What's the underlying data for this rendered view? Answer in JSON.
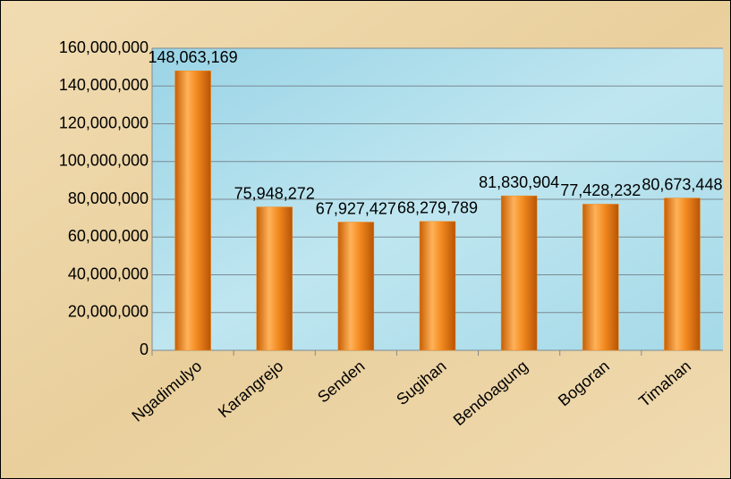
{
  "chart_data": {
    "type": "bar",
    "categories": [
      "Ngadimulyo",
      "Karangrejo",
      "Senden",
      "Sugihan",
      "Bendoagung",
      "Bogoran",
      "Timahan"
    ],
    "values": [
      148063169,
      75948272,
      67927427,
      68279789,
      81830904,
      77428232,
      80673448
    ],
    "value_labels": [
      "148,063,169",
      "75,948,272",
      "67,927,427",
      "68,279,789",
      "81,830,904",
      "77,428,232",
      "80,673,448"
    ],
    "color": "#f08a1c",
    "ylim": [
      0,
      160000000
    ],
    "yticks": [
      0,
      {
        "value": 20000000,
        "label": "20,000,000"
      },
      {
        "value": 40000000,
        "label": "40,000,000"
      },
      {
        "value": 60000000,
        "label": "60,000,000"
      },
      {
        "value": 80000000,
        "label": "80,000,000"
      },
      {
        "value": 100000000,
        "label": "100,000,000"
      },
      {
        "value": 120000000,
        "label": "120,000,000"
      },
      {
        "value": 140000000,
        "label": "140,000,000"
      },
      {
        "value": 160000000,
        "label": "160,000,000"
      }
    ],
    "grid": true
  }
}
